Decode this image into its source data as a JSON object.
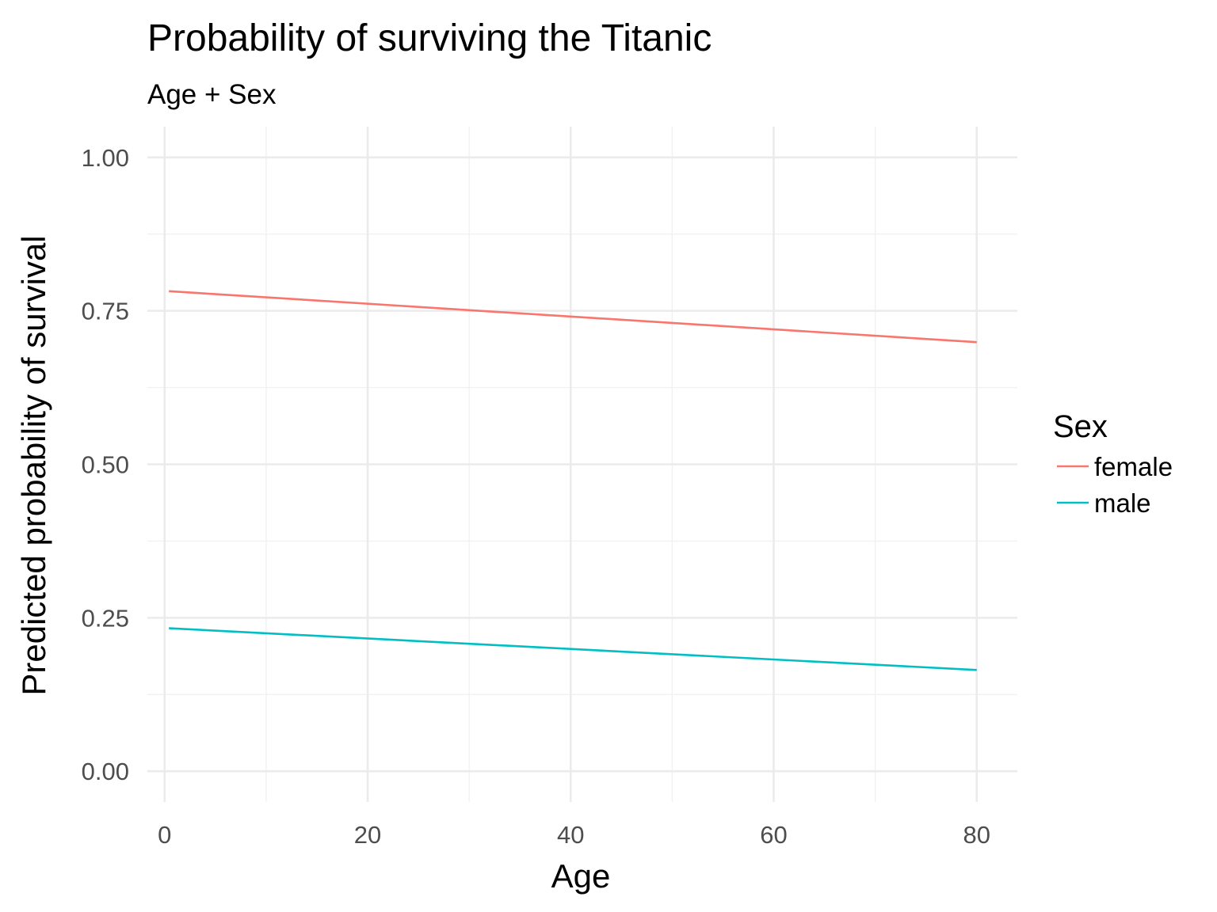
{
  "chart_data": {
    "type": "line",
    "title": "Probability of surviving the Titanic",
    "subtitle": "Age + Sex",
    "xlabel": "Age",
    "ylabel": "Predicted probability of survival",
    "xlim": [
      -1.7,
      84.0
    ],
    "ylim": [
      -0.05,
      1.05
    ],
    "x_ticks": [
      0,
      20,
      40,
      60,
      80
    ],
    "x_tick_labels": [
      "0",
      "20",
      "40",
      "60",
      "80"
    ],
    "x_minor_ticks": [
      10,
      30,
      50,
      70
    ],
    "y_ticks": [
      0,
      0.25,
      0.5,
      0.75,
      1.0
    ],
    "y_tick_labels": [
      "0.00",
      "0.25",
      "0.50",
      "0.75",
      "1.00"
    ],
    "y_minor_ticks": [
      0.125,
      0.375,
      0.625,
      0.875
    ],
    "grid": true,
    "legend": {
      "title": "Sex",
      "position": "right"
    },
    "series": [
      {
        "name": "female",
        "color": "#F8766D",
        "x": [
          0.42,
          80
        ],
        "y": [
          0.782,
          0.699
        ]
      },
      {
        "name": "male",
        "color": "#00BFC4",
        "x": [
          0.42,
          80
        ],
        "y": [
          0.233,
          0.165
        ]
      }
    ]
  }
}
